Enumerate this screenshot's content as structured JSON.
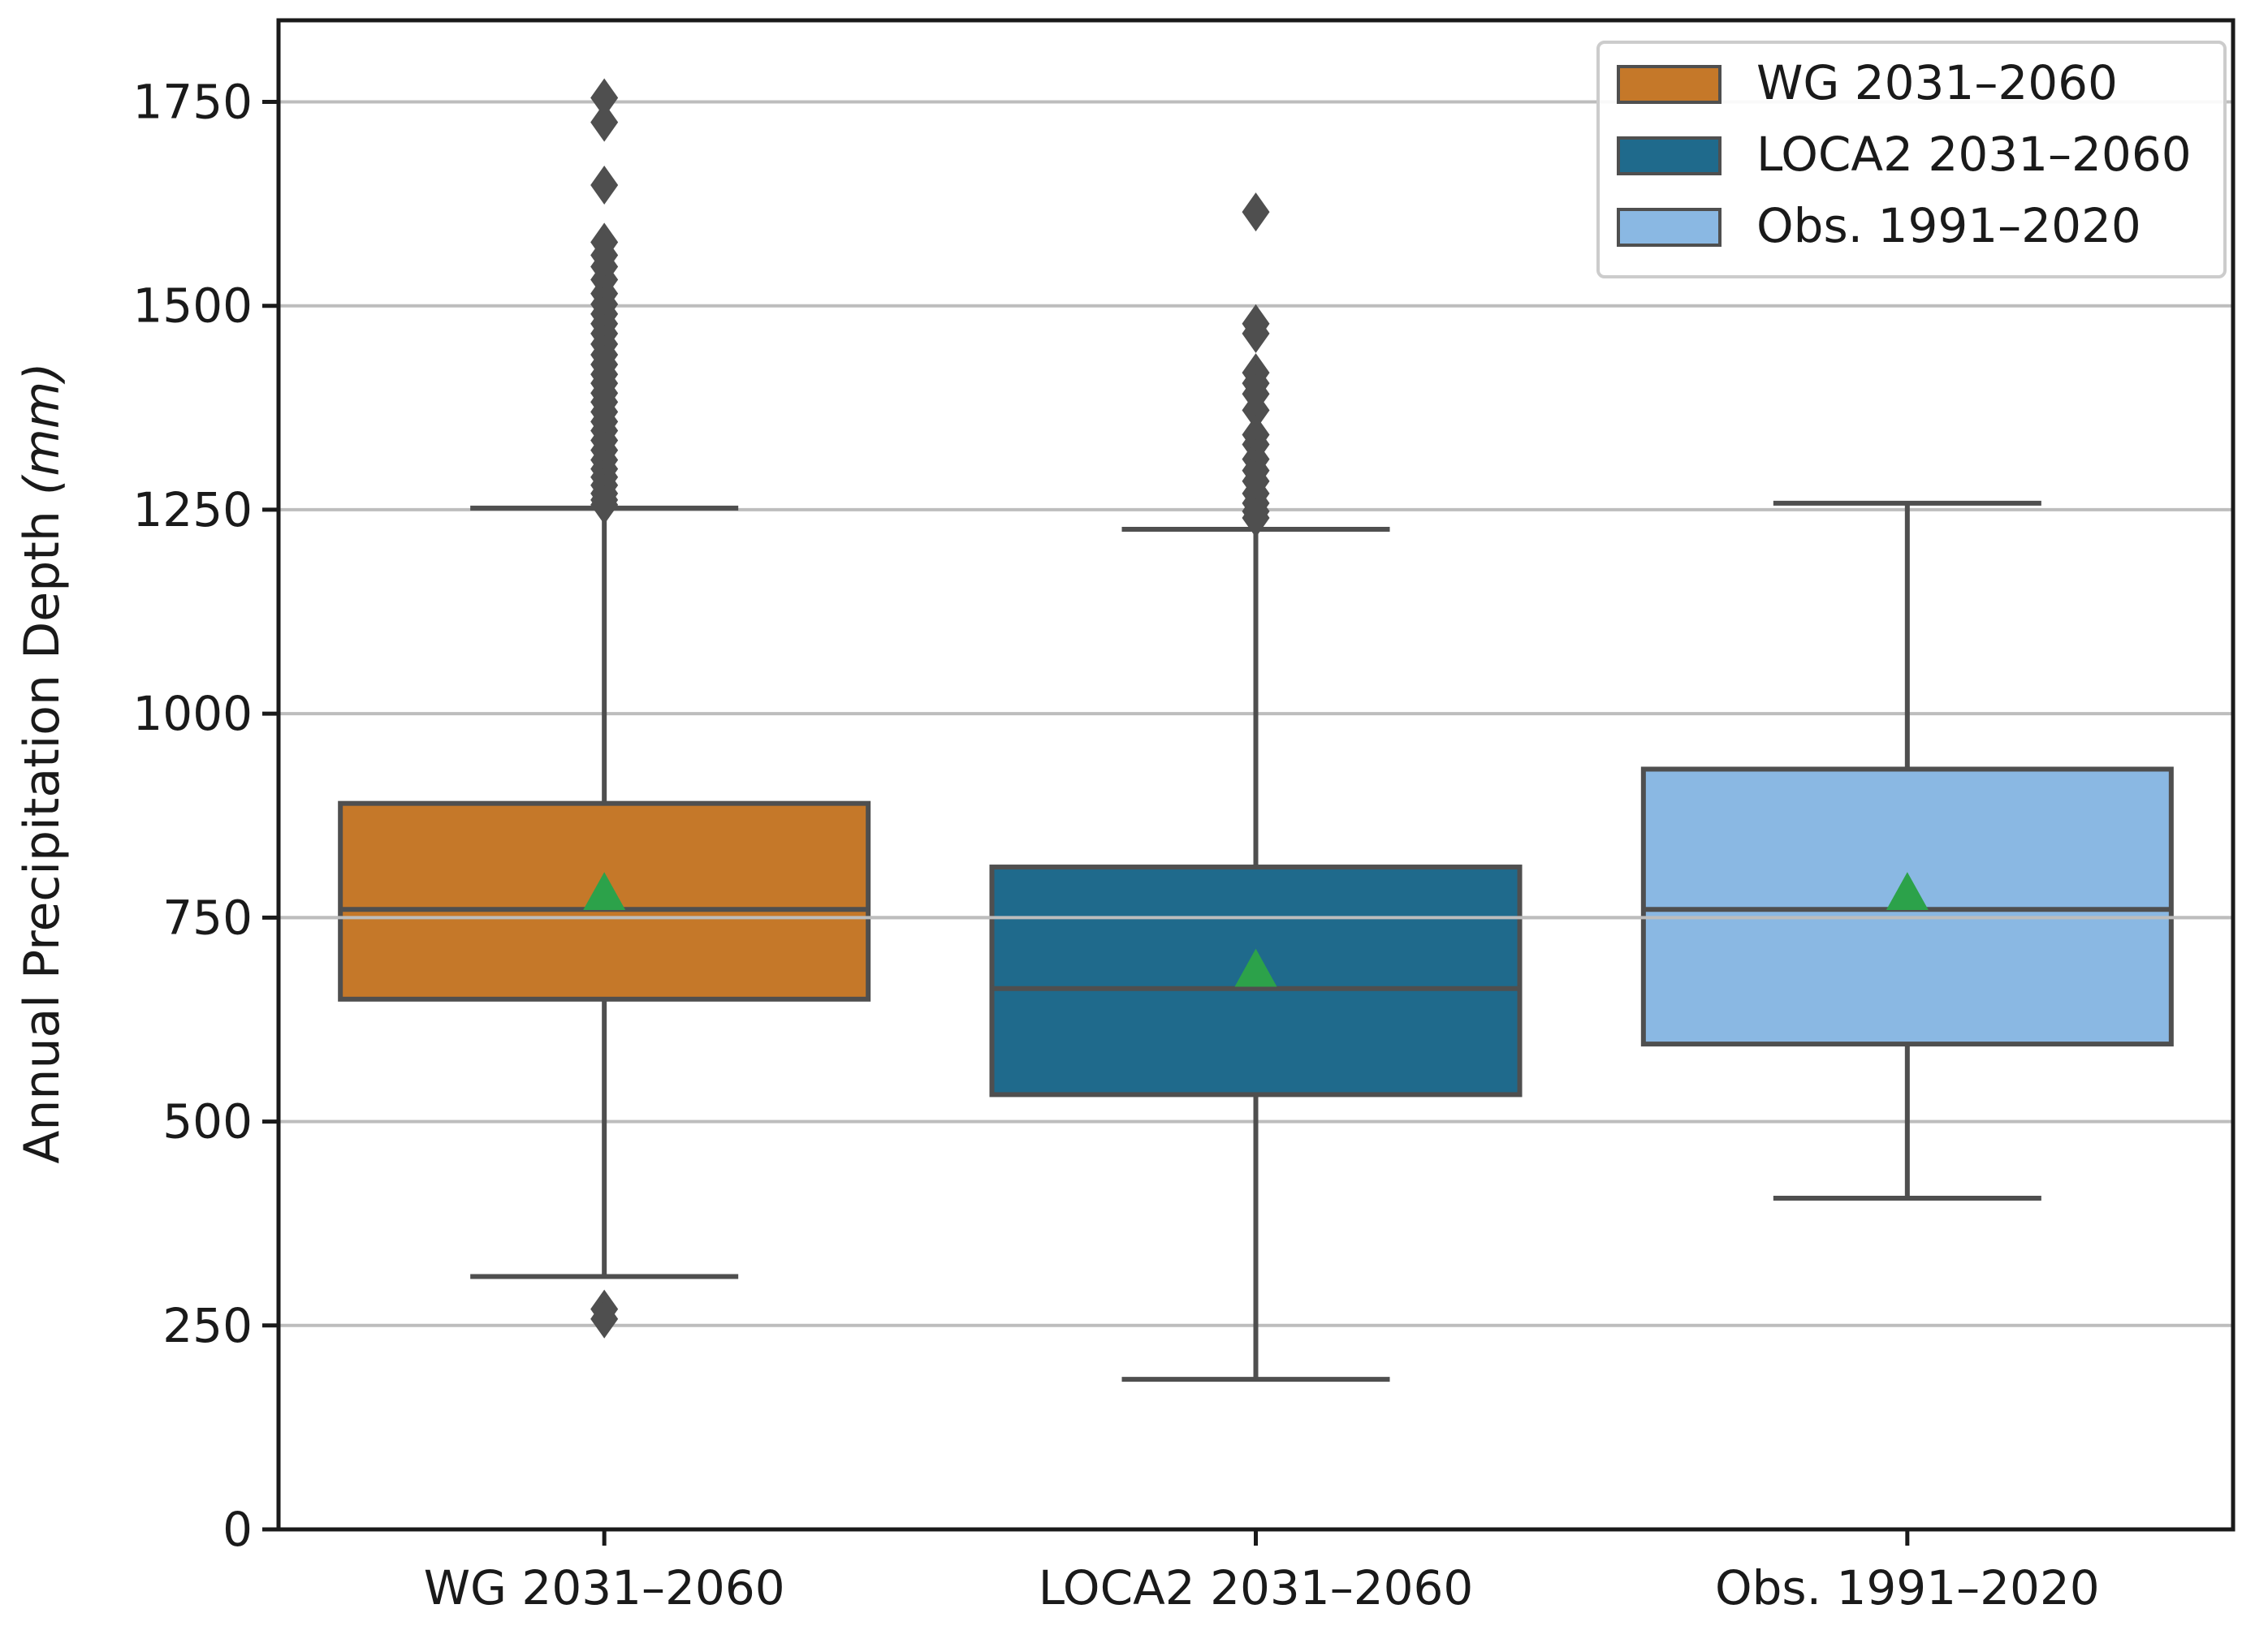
{
  "chart_data": {
    "type": "box",
    "title": "",
    "xlabel": "",
    "ylabel_main": "Annual Precipitation Depth ",
    "ylabel_unit": "(mm)",
    "ylim": [
      0,
      1850
    ],
    "yticks": [
      0,
      250,
      500,
      750,
      1000,
      1250,
      1500,
      1750
    ],
    "ytick_labels": [
      "0",
      "250",
      "500",
      "750",
      "1000",
      "1250",
      "1500",
      "1750"
    ],
    "grid": "horizontal",
    "legend_position": "top-right",
    "categories": [
      "WG 2031–2060",
      "LOCA2 2031–2060",
      "Obs. 1991–2020"
    ],
    "series": [
      {
        "name": "WG 2031–2060",
        "color": "#c57829",
        "q1": 650,
        "median": 760,
        "q3": 890,
        "whisker_low": 310,
        "whisker_high": 1252,
        "mean": 780,
        "outliers": [
          1755,
          1725,
          1648,
          1578,
          1562,
          1548,
          1532,
          1515,
          1502,
          1490,
          1478,
          1466,
          1453,
          1440,
          1428,
          1416,
          1405,
          1393,
          1382,
          1370,
          1358,
          1347,
          1335,
          1323,
          1311,
          1300,
          1290,
          1280,
          1270,
          1262,
          1256,
          270,
          258
        ]
      },
      {
        "name": "LOCA2 2031–2060",
        "color": "#1f6a8c",
        "q1": 533,
        "median": 663,
        "q3": 812,
        "whisker_low": 184,
        "whisker_high": 1226,
        "mean": 686,
        "outliers": [
          1615,
          1478,
          1466,
          1418,
          1405,
          1392,
          1372,
          1342,
          1330,
          1312,
          1298,
          1285,
          1270,
          1258,
          1248,
          1240
        ]
      },
      {
        "name": "Obs. 1991–2020",
        "color": "#8ab8e3",
        "q1": 595,
        "median": 760,
        "q3": 932,
        "whisker_low": 406,
        "whisker_high": 1258,
        "mean": 780,
        "outliers": []
      }
    ],
    "legend": [
      {
        "label": "WG 2031–2060",
        "color": "#c57829"
      },
      {
        "label": "LOCA2 2031–2060",
        "color": "#1f6a8c"
      },
      {
        "label": "Obs. 1991–2020",
        "color": "#8ab8e3"
      }
    ],
    "mean_marker_color": "#2ca24a",
    "line_color": "#4f4f4f"
  }
}
